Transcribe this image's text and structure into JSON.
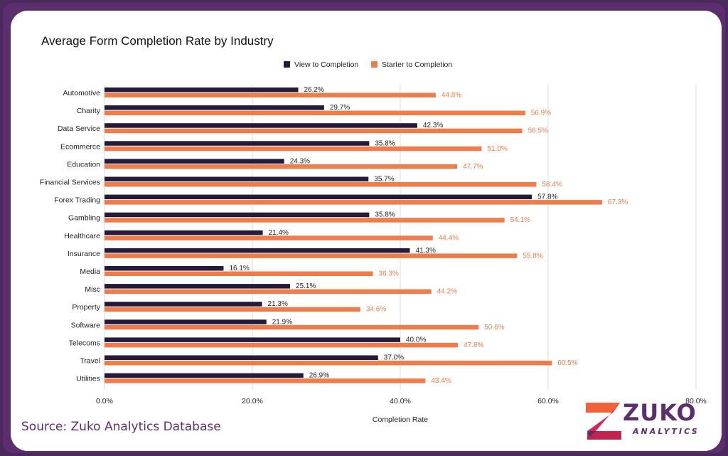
{
  "source_text": "Source: Zuko Analytics Database",
  "brand": {
    "name": "ZUKO",
    "sub": "ANALYTICS",
    "colors": [
      "#f0623a",
      "#d9245a",
      "#5b2e6e"
    ]
  },
  "colors": {
    "view": "#241a3a",
    "starter": "#ee7d4b",
    "frame": "#5b2e6e"
  },
  "chart_data": {
    "type": "bar",
    "orientation": "horizontal",
    "title": "Average Form Completion Rate by Industry",
    "xlabel": "Completion Rate",
    "ylabel": "",
    "xlim": [
      0,
      80
    ],
    "xticks": [
      "0.0%",
      "20.0%",
      "40.0%",
      "60.0%",
      "80.0%"
    ],
    "grid": "vertical",
    "legend_position": "top-center",
    "categories": [
      "Automotive",
      "Charity",
      "Data Service",
      "Ecommerce",
      "Education",
      "Financial Services",
      "Forex Trading",
      "Gambling",
      "Healthcare",
      "Insurance",
      "Media",
      "Misc",
      "Property",
      "Software",
      "Telecoms",
      "Travel",
      "Utilities"
    ],
    "series": [
      {
        "name": "View to Completion",
        "color": "#241a3a",
        "values": [
          26.2,
          29.7,
          42.3,
          35.8,
          24.3,
          35.7,
          57.8,
          35.8,
          21.4,
          41.3,
          16.1,
          25.1,
          21.3,
          21.9,
          40.0,
          37.0,
          26.9
        ]
      },
      {
        "name": "Starter to Completion",
        "color": "#ee7d4b",
        "values": [
          44.8,
          56.9,
          56.5,
          51.0,
          47.7,
          58.4,
          67.3,
          54.1,
          44.4,
          55.8,
          36.3,
          44.2,
          34.6,
          50.6,
          47.8,
          60.5,
          43.4
        ]
      }
    ]
  }
}
